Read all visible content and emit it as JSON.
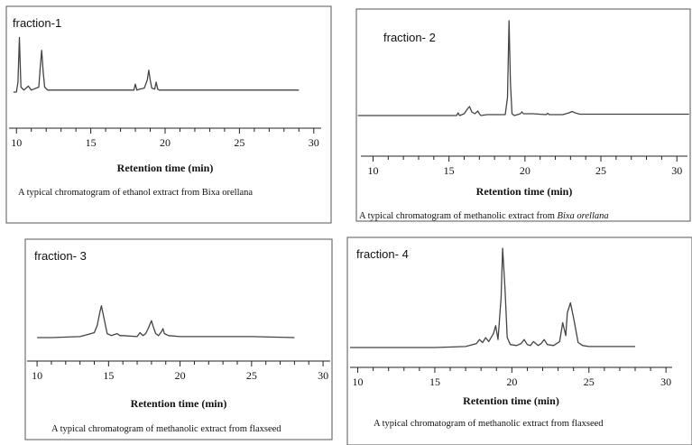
{
  "chart_data": [
    {
      "type": "line",
      "label": "fraction-1",
      "xlabel": "Retention time (min)",
      "xlim": [
        9.5,
        30.5
      ],
      "xticks": [
        10,
        15,
        20,
        25,
        30
      ],
      "caption": "A typical chromatogram of ethanol extract from Bixa orellana",
      "caption_italic": "",
      "series": [
        {
          "x": [
            9.8,
            10.0,
            10.1,
            10.2,
            10.3,
            10.5,
            10.8,
            11.0,
            11.5,
            11.6,
            11.7,
            11.8,
            11.9,
            12.1,
            13.0,
            15.0,
            17.5,
            17.9,
            18.0,
            18.1,
            18.3,
            18.6,
            18.8,
            18.9,
            19.0,
            19.1,
            19.3,
            19.4,
            19.5,
            19.6,
            20.0,
            25.0,
            29.0
          ],
          "y": [
            0.0,
            0.0,
            0.1,
            0.55,
            0.05,
            0.02,
            0.06,
            0.02,
            0.05,
            0.25,
            0.42,
            0.2,
            0.05,
            0.02,
            0.02,
            0.02,
            0.02,
            0.02,
            0.08,
            0.02,
            0.03,
            0.04,
            0.12,
            0.22,
            0.12,
            0.04,
            0.03,
            0.1,
            0.03,
            0.02,
            0.02,
            0.02,
            0.02
          ]
        }
      ]
    },
    {
      "type": "line",
      "label": "fraction- 2",
      "xlabel": "Retention time (min)",
      "xlim": [
        9.2,
        30.7
      ],
      "xticks": [
        10,
        15,
        20,
        25,
        30
      ],
      "caption": "A typical chromatogram of  methanolic extract from ",
      "caption_italic": "Bixa orellana",
      "series": [
        {
          "x": [
            9.0,
            15.0,
            15.5,
            15.6,
            15.7,
            16.0,
            16.2,
            16.35,
            16.5,
            16.7,
            16.9,
            17.0,
            17.1,
            17.5,
            18.7,
            18.85,
            18.95,
            19.05,
            19.15,
            19.3,
            19.7,
            19.8,
            19.9,
            20.5,
            21.4,
            21.5,
            21.6,
            22.5,
            22.9,
            23.1,
            23.3,
            23.6,
            25.0,
            30.8
          ],
          "y": [
            0.0,
            0.0,
            0.0,
            0.03,
            0.0,
            0.02,
            0.07,
            0.1,
            0.04,
            0.02,
            0.05,
            0.02,
            0.0,
            0.01,
            0.01,
            0.2,
            1.05,
            0.35,
            0.02,
            0.0,
            0.02,
            0.04,
            0.02,
            0.02,
            0.01,
            0.025,
            0.01,
            0.01,
            0.03,
            0.045,
            0.03,
            0.015,
            0.015,
            0.015
          ]
        }
      ]
    },
    {
      "type": "line",
      "label": "fraction- 3",
      "xlabel": "Retention time (min)",
      "xlim": [
        9.3,
        30.5
      ],
      "xticks": [
        10,
        15,
        20,
        25,
        30
      ],
      "caption": "A typical chromatogram of methanolic extract from flaxseed",
      "caption_italic": "",
      "series": [
        {
          "x": [
            10.0,
            11.0,
            13.0,
            13.5,
            14.0,
            14.2,
            14.4,
            14.5,
            14.7,
            14.9,
            15.2,
            15.6,
            15.8,
            16.0,
            17.0,
            17.2,
            17.4,
            17.6,
            17.8,
            18.0,
            18.1,
            18.3,
            18.5,
            18.7,
            18.8,
            18.9,
            19.2,
            20.0,
            25.0,
            28.0
          ],
          "y": [
            0.0,
            0.0,
            0.01,
            0.03,
            0.05,
            0.12,
            0.26,
            0.32,
            0.18,
            0.04,
            0.02,
            0.04,
            0.02,
            0.02,
            0.01,
            0.05,
            0.02,
            0.04,
            0.1,
            0.17,
            0.12,
            0.04,
            0.02,
            0.06,
            0.09,
            0.04,
            0.02,
            0.01,
            0.01,
            0.0
          ]
        }
      ]
    },
    {
      "type": "line",
      "label": "fraction- 4",
      "xlabel": "Retention time (min)",
      "xlim": [
        9.5,
        30.4
      ],
      "xticks": [
        10,
        15,
        20,
        25,
        30
      ],
      "caption": "A typical chromatogram of methanolic extract from flaxseed",
      "caption_italic": "",
      "series": [
        {
          "x": [
            9.5,
            15.0,
            17.0,
            17.7,
            17.9,
            18.1,
            18.3,
            18.5,
            18.8,
            18.95,
            19.1,
            19.3,
            19.4,
            19.55,
            19.7,
            19.9,
            20.3,
            20.6,
            20.8,
            21.0,
            21.2,
            21.4,
            21.7,
            21.9,
            22.1,
            22.3,
            22.7,
            23.1,
            23.3,
            23.5,
            23.6,
            23.8,
            24.0,
            24.3,
            24.6,
            25.0,
            28.0
          ],
          "y": [
            0.0,
            0.0,
            0.01,
            0.04,
            0.08,
            0.05,
            0.1,
            0.06,
            0.14,
            0.22,
            0.08,
            0.5,
            1.0,
            0.6,
            0.1,
            0.03,
            0.02,
            0.04,
            0.08,
            0.03,
            0.02,
            0.06,
            0.02,
            0.04,
            0.08,
            0.03,
            0.02,
            0.06,
            0.25,
            0.12,
            0.35,
            0.45,
            0.3,
            0.05,
            0.02,
            0.01,
            0.01
          ]
        }
      ]
    }
  ]
}
